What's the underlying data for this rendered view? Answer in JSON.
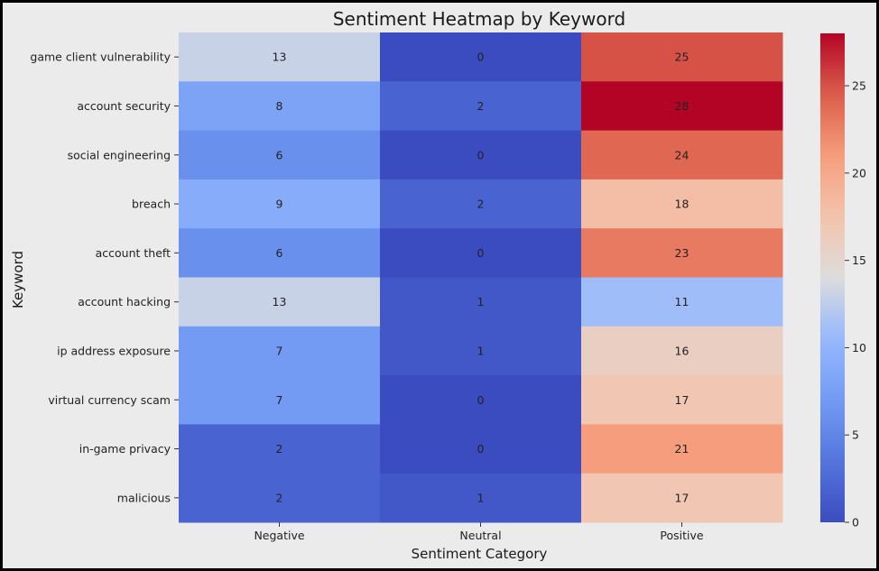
{
  "chart_data": {
    "type": "heatmap",
    "title": "Sentiment Heatmap by Keyword",
    "xlabel": "Sentiment Category",
    "ylabel": "Keyword",
    "columns": [
      "Negative",
      "Neutral",
      "Positive"
    ],
    "rows": [
      "game client vulnerability",
      "account security",
      "social engineering",
      "breach",
      "account theft",
      "account hacking",
      "ip address exposure",
      "virtual currency scam",
      "in-game privacy",
      "malicious"
    ],
    "values": [
      [
        13,
        0,
        25
      ],
      [
        8,
        2,
        28
      ],
      [
        6,
        0,
        24
      ],
      [
        9,
        2,
        18
      ],
      [
        6,
        0,
        23
      ],
      [
        13,
        1,
        11
      ],
      [
        7,
        1,
        16
      ],
      [
        7,
        0,
        17
      ],
      [
        2,
        0,
        21
      ],
      [
        2,
        1,
        17
      ]
    ],
    "colormap": "coolwarm",
    "vmin": 0,
    "vmax": 28,
    "colorbar_ticks": [
      0,
      5,
      10,
      15,
      20,
      25
    ],
    "annotations": true
  }
}
